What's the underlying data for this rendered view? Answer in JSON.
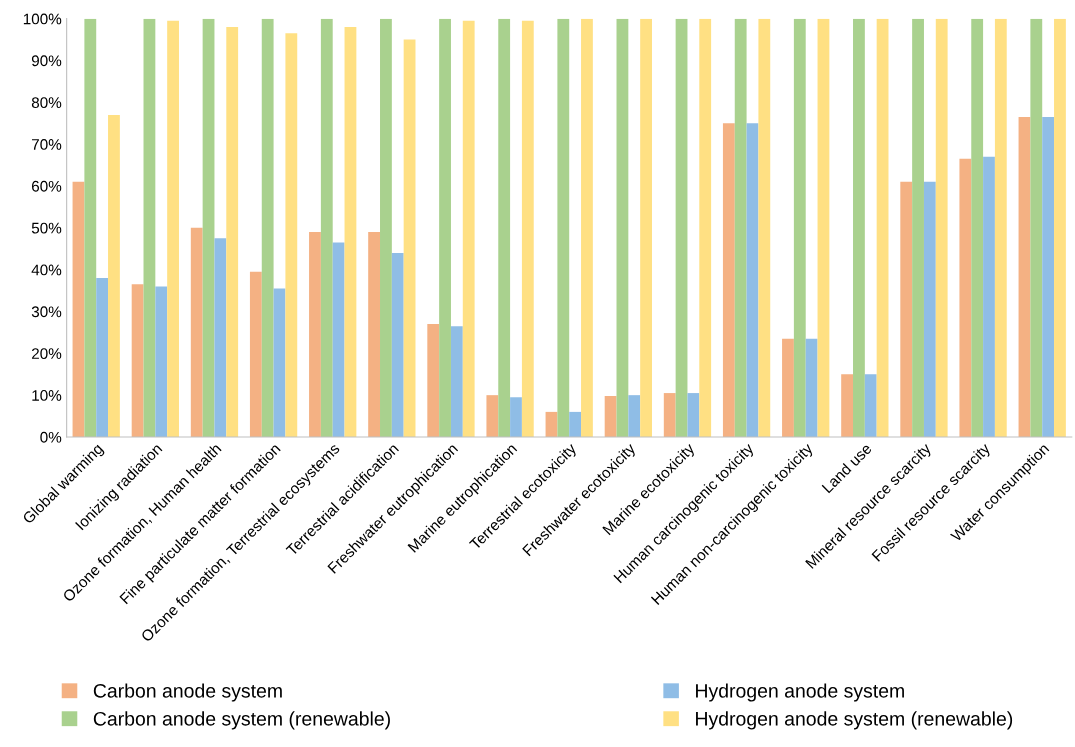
{
  "chart_data": {
    "type": "bar",
    "categories": [
      "Global warming",
      "Ionizing radiation",
      "Ozone formation, Human health",
      "Fine particulate matter formation",
      "Ozone formation, Terrestrial ecosystems",
      "Terrestrial acidification",
      "Freshwater eutrophication",
      "Marine eutrophication",
      "Terrestrial ecotoxicity",
      "Freshwater ecotoxicity",
      "Marine ecotoxicity",
      "Human carcinogenic toxicity",
      "Human non-carcinogenic toxicity",
      "Land use",
      "Mineral resource scarcity",
      "Fossil resource scarcity",
      "Water consumption"
    ],
    "series": [
      {
        "name": "Carbon anode system",
        "color": "#f4b183",
        "values": [
          61,
          36.5,
          50,
          39.5,
          49,
          49,
          27,
          10,
          6,
          9.8,
          10.5,
          75,
          23.5,
          15,
          61,
          66.5,
          76.5
        ]
      },
      {
        "name": "Carbon anode system (renewable)",
        "color": "#a9d18e",
        "values": [
          100,
          100,
          100,
          100,
          100,
          100,
          100,
          100,
          100,
          100,
          100,
          100,
          100,
          100,
          100,
          100,
          100
        ]
      },
      {
        "name": "Hydrogen anode system",
        "color": "#8fbde6",
        "values": [
          38,
          36,
          47.5,
          35.5,
          46.5,
          44,
          26.5,
          9.5,
          6,
          10,
          10.5,
          75,
          23.5,
          15,
          61,
          67,
          76.5
        ]
      },
      {
        "name": "Hydrogen anode system (renewable)",
        "color": "#ffe083",
        "values": [
          77,
          99.5,
          98,
          96.5,
          98,
          95,
          99.5,
          99.5,
          100,
          100,
          100,
          100,
          100,
          100,
          100,
          100,
          100
        ]
      }
    ],
    "ylim": [
      0,
      100
    ],
    "yticks": [
      {
        "value": 0,
        "label": "0%"
      },
      {
        "value": 10,
        "label": "10%"
      },
      {
        "value": 20,
        "label": "20%"
      },
      {
        "value": 30,
        "label": "30%"
      },
      {
        "value": 40,
        "label": "40%"
      },
      {
        "value": 50,
        "label": "50%"
      },
      {
        "value": 60,
        "label": "60%"
      },
      {
        "value": 70,
        "label": "70%"
      },
      {
        "value": 80,
        "label": "80%"
      },
      {
        "value": 90,
        "label": "90%"
      },
      {
        "value": 100,
        "label": "100%"
      }
    ],
    "legend": "bottom",
    "grid": false
  }
}
